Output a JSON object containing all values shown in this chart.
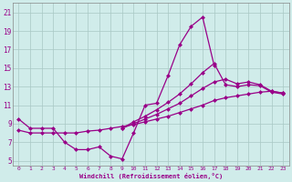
{
  "xlabel": "Windchill (Refroidissement éolien,°C)",
  "bg_color": "#d0ecea",
  "grid_color": "#a8c8c4",
  "line_color": "#990088",
  "markersize": 2.5,
  "linewidth": 0.9,
  "xlim": [
    -0.5,
    23.5
  ],
  "ylim": [
    4.5,
    22.0
  ],
  "xticks": [
    0,
    1,
    2,
    3,
    4,
    5,
    6,
    7,
    8,
    9,
    10,
    11,
    12,
    13,
    14,
    15,
    16,
    17,
    18,
    19,
    20,
    21,
    22,
    23
  ],
  "yticks": [
    5,
    7,
    9,
    11,
    13,
    15,
    17,
    19,
    21
  ],
  "series": [
    {
      "x": [
        0,
        1,
        2,
        3,
        4,
        5,
        6,
        7,
        8,
        9,
        10,
        11,
        12,
        13,
        14,
        15,
        16,
        17
      ],
      "y": [
        9.5,
        8.5,
        8.5,
        8.5,
        7.0,
        6.2,
        6.2,
        6.5,
        5.5,
        5.2,
        8.0,
        11.0,
        11.2,
        14.2,
        17.5,
        19.5,
        20.5,
        15.3
      ]
    },
    {
      "x": [
        0,
        1,
        2,
        3,
        4,
        5,
        6,
        7,
        8,
        9,
        10,
        11,
        12,
        13,
        14,
        15,
        16,
        17,
        18,
        19,
        20,
        21,
        22,
        23
      ],
      "y": [
        8.3,
        8.0,
        8.0,
        8.0,
        8.0,
        8.0,
        8.2,
        8.3,
        8.5,
        8.7,
        8.9,
        9.2,
        9.5,
        9.8,
        10.2,
        10.6,
        11.0,
        11.5,
        11.8,
        12.0,
        12.2,
        12.4,
        12.5,
        12.3
      ]
    },
    {
      "x": [
        9,
        10,
        11,
        12,
        13,
        14,
        15,
        16,
        17,
        18,
        19,
        20,
        21,
        22,
        23
      ],
      "y": [
        8.5,
        9.0,
        9.5,
        10.0,
        10.6,
        11.2,
        12.0,
        12.8,
        13.5,
        13.8,
        13.3,
        13.5,
        13.2,
        12.5,
        12.3
      ]
    },
    {
      "x": [
        9,
        10,
        11,
        12,
        13,
        14,
        15,
        16,
        17,
        18,
        19,
        20,
        21,
        22,
        23
      ],
      "y": [
        8.5,
        9.2,
        9.8,
        10.5,
        11.3,
        12.2,
        13.3,
        14.5,
        15.5,
        13.2,
        13.0,
        13.2,
        13.1,
        12.4,
        12.2
      ]
    }
  ]
}
